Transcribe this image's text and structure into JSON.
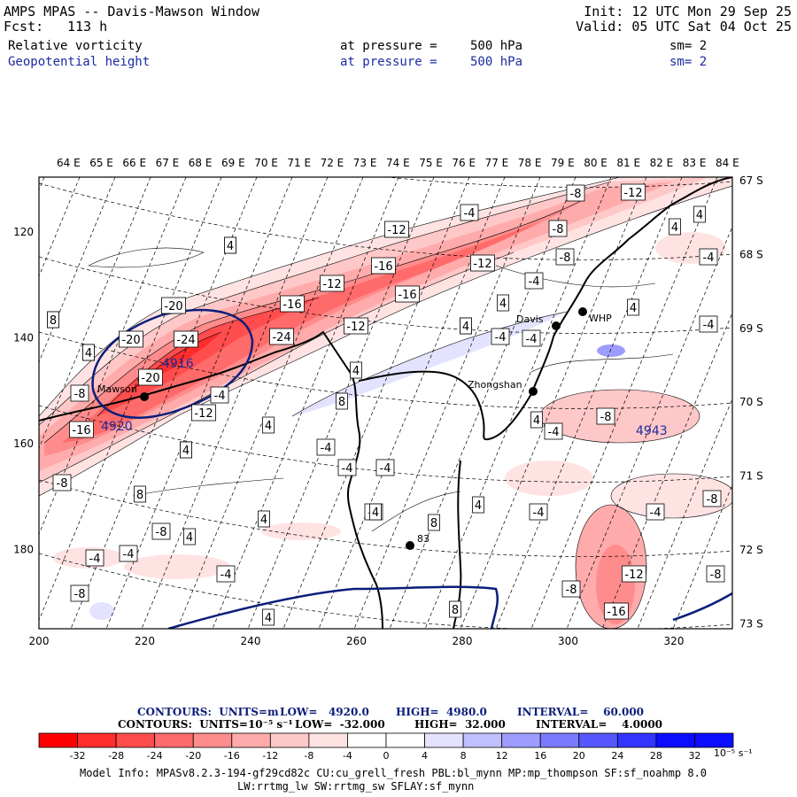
{
  "header": {
    "title": "AMPS MPAS -- Davis-Mawson Window",
    "fcst_label": "Fcst:",
    "fcst_value": "113 h",
    "init": "Init: 12 UTC Mon 29 Sep 25",
    "valid": "Valid: 05 UTC Sat 04 Oct 25"
  },
  "fields": [
    {
      "name": "Relative vorticity",
      "pressure_label": "at pressure =",
      "pressure_value": "500 hPa",
      "sm": "sm= 2"
    },
    {
      "name": "Geopotential height",
      "pressure_label": "at pressure =",
      "pressure_value": "500 hPa",
      "sm": "sm= 2"
    }
  ],
  "axes": {
    "top_lon_labels": [
      "64 E",
      "65 E",
      "66 E",
      "67 E",
      "68 E",
      "69 E",
      "70 E",
      "71 E",
      "72 E",
      "73 E",
      "74 E",
      "75 E",
      "76 E",
      "77 E",
      "78 E",
      "79 E",
      "80 E",
      "81 E",
      "82 E",
      "83 E",
      "84 E"
    ],
    "right_lat_labels": [
      "67 S",
      "68 S",
      "69 S",
      "70 S",
      "71 S",
      "72 S",
      "73 S"
    ],
    "bottom_x_labels": [
      "200",
      "220",
      "240",
      "260",
      "280",
      "300",
      "320"
    ],
    "left_y_labels": [
      "120",
      "140",
      "160",
      "180"
    ]
  },
  "stations": [
    {
      "name": "Mawson"
    },
    {
      "name": "Zhongshan"
    },
    {
      "name": "Davis"
    },
    {
      "name": "WHP"
    },
    {
      "name": "83"
    }
  ],
  "height_labels": [
    "4916",
    "4920",
    "4943"
  ],
  "vort_labels": {
    "neg": [
      "-8",
      "-12",
      "-4",
      "-12",
      "-8",
      "-16",
      "-12",
      "-16",
      "-12",
      "-8",
      "-20",
      "-16",
      "-20",
      "-24",
      "-24",
      "-4",
      "-12",
      "-20",
      "-8",
      "-16",
      "-4",
      "-12",
      "-8",
      "-4",
      "-4",
      "-4",
      "-4",
      "-4",
      "-8",
      "-4",
      "-4",
      "-4",
      "-4",
      "-4",
      "-8",
      "-4",
      "-12",
      "-16",
      "-8",
      "-4",
      "-8",
      "-4",
      "-8",
      "-8",
      "-4"
    ],
    "pos": [
      "4",
      "4",
      "8",
      "4",
      "4",
      "4",
      "8",
      "4",
      "4",
      "8",
      "4",
      "8",
      "4",
      "4",
      "4",
      "4",
      "4",
      "4",
      "8",
      "4",
      "4",
      "4",
      "8",
      "4",
      "4",
      "4"
    ]
  },
  "contour_info": {
    "line1": {
      "label": "CONTOURS:  UNITS=m",
      "low": "LOW=   4920.0",
      "high": "HIGH=  4980.0",
      "interval": "INTERVAL=    60.000"
    },
    "line2": {
      "label": "CONTOURS:  UNITS=10⁻⁵ s⁻¹",
      "low": "LOW=  -32.000",
      "high": "HIGH=  32.000",
      "interval": "INTERVAL=    4.0000"
    }
  },
  "colorbar": {
    "ticks": [
      "-32",
      "-28",
      "-24",
      "-20",
      "-16",
      "-12",
      "-8",
      "-4",
      "0",
      "4",
      "8",
      "12",
      "16",
      "20",
      "24",
      "28",
      "32"
    ],
    "units": "10⁻⁵ s⁻¹",
    "colors": [
      "#ff0000",
      "#ff2d2d",
      "#ff4d4d",
      "#ff6b6b",
      "#ff8c8c",
      "#ffabab",
      "#ffc8c8",
      "#ffe3e3",
      "#ffffff",
      "#ffffff",
      "#e3e3ff",
      "#c0c0ff",
      "#9d9dff",
      "#7a7aff",
      "#5757ff",
      "#3434ff",
      "#0c0cff"
    ]
  },
  "model_info": {
    "line1": "Model Info: MPASv8.2.3-194-gf29cd82c CU:cu_grell_fresh PBL:bl_mynn MP:mp_thompson SF:sf_noahmp 8.0",
    "line2": "LW:rrtmg_lw SW:rrtmg_sw SFLAY:sf_mynn"
  }
}
